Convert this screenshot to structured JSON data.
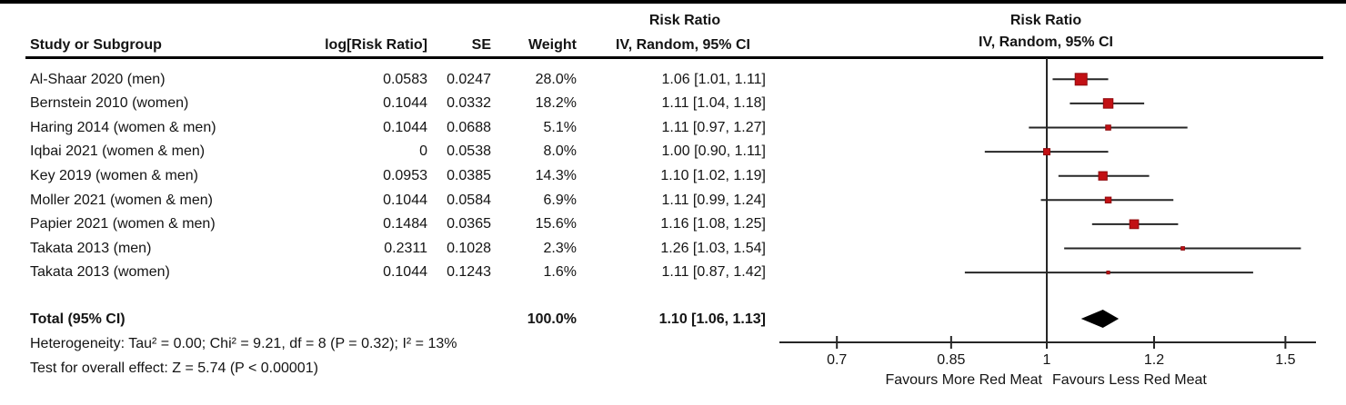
{
  "figure_title": "Forest plot: Risk Ratio, IV, Random, 95% CI",
  "columns": {
    "study": "Study or Subgroup",
    "log_rr": "log[Risk Ratio]",
    "se": "SE",
    "weight": "Weight",
    "ci_header_line1": "Risk Ratio",
    "ci_header_line2": "IV, Random, 95% CI",
    "plot_header_line1": "Risk Ratio",
    "plot_header_line2": "IV, Random, 95% CI"
  },
  "chart_data": {
    "type": "forest",
    "effect_measure": "Risk Ratio",
    "model": "IV, Random, 95% CI",
    "x_scale": "log",
    "axis_range": [
      0.635,
      1.58
    ],
    "axis_ticks": [
      {
        "value": 0.7,
        "label": "0.7"
      },
      {
        "value": 0.85,
        "label": "0.85"
      },
      {
        "value": 1,
        "label": "1"
      },
      {
        "value": 1.2,
        "label": "1.2"
      },
      {
        "value": 1.5,
        "label": "1.5"
      }
    ],
    "null_value": 1,
    "favours_left": "Favours More Red Meat",
    "favours_right": "Favours Less Red Meat",
    "studies": [
      {
        "name": "Al-Shaar 2020 (men)",
        "log_rr": "0.0583",
        "se": "0.0247",
        "weight": "28.0%",
        "weight_pct": 28.0,
        "ci_text": "1.06 [1.01, 1.11]",
        "rr": 1.06,
        "low": 1.01,
        "high": 1.11
      },
      {
        "name": "Bernstein 2010 (women)",
        "log_rr": "0.1044",
        "se": "0.0332",
        "weight": "18.2%",
        "weight_pct": 18.2,
        "ci_text": "1.11 [1.04, 1.18]",
        "rr": 1.11,
        "low": 1.04,
        "high": 1.18
      },
      {
        "name": "Haring 2014 (women & men)",
        "log_rr": "0.1044",
        "se": "0.0688",
        "weight": "5.1%",
        "weight_pct": 5.1,
        "ci_text": "1.11 [0.97, 1.27]",
        "rr": 1.11,
        "low": 0.97,
        "high": 1.27
      },
      {
        "name": "Iqbai 2021 (women & men)",
        "log_rr": "0",
        "se": "0.0538",
        "weight": "8.0%",
        "weight_pct": 8.0,
        "ci_text": "1.00 [0.90, 1.11]",
        "rr": 1.0,
        "low": 0.9,
        "high": 1.11
      },
      {
        "name": "Key 2019 (women & men)",
        "log_rr": "0.0953",
        "se": "0.0385",
        "weight": "14.3%",
        "weight_pct": 14.3,
        "ci_text": "1.10 [1.02, 1.19]",
        "rr": 1.1,
        "low": 1.02,
        "high": 1.19
      },
      {
        "name": "Moller 2021 (women & men)",
        "log_rr": "0.1044",
        "se": "0.0584",
        "weight": "6.9%",
        "weight_pct": 6.9,
        "ci_text": "1.11 [0.99, 1.24]",
        "rr": 1.11,
        "low": 0.99,
        "high": 1.24
      },
      {
        "name": "Papier 2021 (women & men)",
        "log_rr": "0.1484",
        "se": "0.0365",
        "weight": "15.6%",
        "weight_pct": 15.6,
        "ci_text": "1.16 [1.08, 1.25]",
        "rr": 1.16,
        "low": 1.08,
        "high": 1.25
      },
      {
        "name": "Takata 2013 (men)",
        "log_rr": "0.2311",
        "se": "0.1028",
        "weight": "2.3%",
        "weight_pct": 2.3,
        "ci_text": "1.26 [1.03, 1.54]",
        "rr": 1.26,
        "low": 1.03,
        "high": 1.54
      },
      {
        "name": "Takata 2013 (women)",
        "log_rr": "0.1044",
        "se": "0.1243",
        "weight": "1.6%",
        "weight_pct": 1.6,
        "ci_text": "1.11 [0.87, 1.42]",
        "rr": 1.11,
        "low": 0.87,
        "high": 1.42
      }
    ],
    "total": {
      "label": "Total (95% CI)",
      "weight": "100.0%",
      "ci_text": "1.10 [1.06, 1.13]",
      "rr": 1.1,
      "low": 1.06,
      "high": 1.13
    },
    "heterogeneity": "Heterogeneity: Tau² = 0.00; Chi² = 9.21, df = 8 (P = 0.32); I² = 13%",
    "overall_effect": "Test for overall effect: Z = 5.74 (P < 0.00001)"
  },
  "colors": {
    "marker_fill": "#C21014",
    "marker_border": "#8F0A0D",
    "diamond": "#000000",
    "line": "#262626",
    "top_bar": "#000000"
  }
}
